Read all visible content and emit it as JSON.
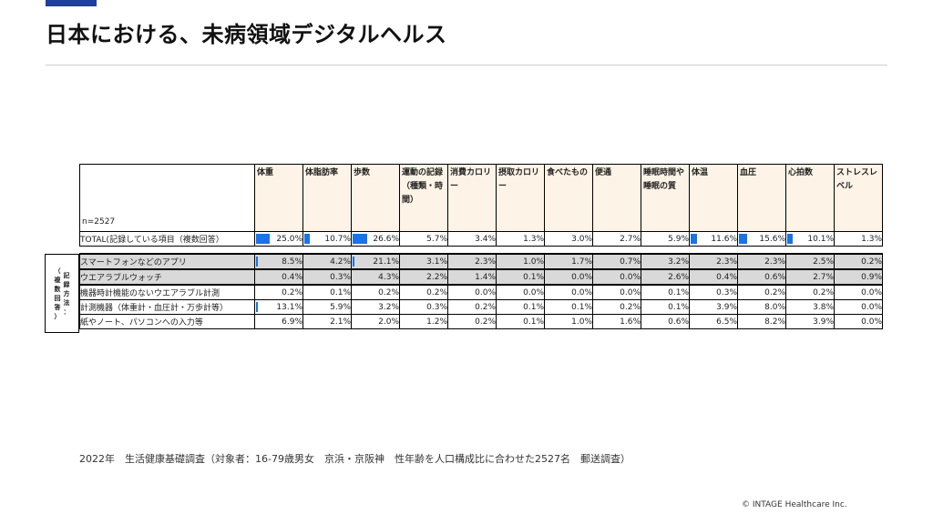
{
  "title": "日本における、未病領域デジタルヘルス",
  "colors": {
    "accent": "#1f3f9a",
    "bar": "#1a73e8",
    "header_bg": "#fdf3e6",
    "highlight_bg": "#d9d9d9"
  },
  "table": {
    "corner_label": "n=2527",
    "columns": [
      "体重",
      "体脂肪率",
      "歩数",
      "運動の記録（種類・時間）",
      "消費カロリー",
      "摂取カロリー",
      "食べたもの",
      "便通",
      "睡眠時間や睡眠の質",
      "体温",
      "血圧",
      "心拍数",
      "ストレスレベル"
    ],
    "total_row": {
      "label": "TOTAL(記録している項目（複数回答）",
      "values": [
        "25.0%",
        "10.7%",
        "26.6%",
        "5.7%",
        "3.4%",
        "1.3%",
        "3.0%",
        "2.7%",
        "5.9%",
        "11.6%",
        "15.6%",
        "10.1%",
        "1.3%"
      ],
      "bar_fractions": [
        0.94,
        0.4,
        1.0,
        0,
        0,
        0,
        0,
        0,
        0,
        0.44,
        0.59,
        0.38,
        0
      ]
    },
    "side_label": "（記録方法：複数回答）",
    "side_chars_left": [
      "（",
      "複",
      "数",
      "回",
      "答",
      "）"
    ],
    "side_chars_right": [
      "記",
      "録",
      "方",
      "法",
      "："
    ],
    "method_rows": [
      {
        "label": "スマートフォンなどのアプリ",
        "values": [
          "8.5%",
          "4.2%",
          "21.1%",
          "3.1%",
          "2.3%",
          "1.0%",
          "1.7%",
          "0.7%",
          "3.2%",
          "2.3%",
          "2.3%",
          "2.5%",
          "0.2%"
        ],
        "bar_fractions": [
          0.06,
          0,
          0.08,
          0,
          0,
          0,
          0,
          0,
          0,
          0,
          0,
          0,
          0
        ],
        "highlight": true
      },
      {
        "label": "ウエアラブルウォッチ",
        "values": [
          "0.4%",
          "0.3%",
          "4.3%",
          "2.2%",
          "1.4%",
          "0.1%",
          "0.0%",
          "0.0%",
          "2.6%",
          "0.4%",
          "0.6%",
          "2.7%",
          "0.9%"
        ],
        "bar_fractions": [
          0,
          0,
          0,
          0,
          0,
          0,
          0,
          0,
          0,
          0,
          0,
          0,
          0
        ],
        "highlight": true
      },
      {
        "label": "機器時計機能のないウエアラブル計測",
        "values": [
          "0.2%",
          "0.1%",
          "0.2%",
          "0.2%",
          "0.0%",
          "0.0%",
          "0.0%",
          "0.0%",
          "0.1%",
          "0.3%",
          "0.2%",
          "0.2%",
          "0.0%"
        ],
        "bar_fractions": [
          0,
          0,
          0,
          0,
          0,
          0,
          0,
          0,
          0,
          0,
          0,
          0,
          0
        ],
        "highlight": false
      },
      {
        "label": "計測機器（体重計・血圧計・万歩計等）",
        "values": [
          "13.1%",
          "5.9%",
          "3.2%",
          "0.3%",
          "0.2%",
          "0.1%",
          "0.1%",
          "0.2%",
          "0.1%",
          "3.9%",
          "8.0%",
          "3.8%",
          "0.0%"
        ],
        "bar_fractions": [
          0.04,
          0,
          0,
          0,
          0,
          0,
          0,
          0,
          0,
          0,
          0,
          0,
          0
        ],
        "highlight": false
      },
      {
        "label": "紙やノート、パソコンへの入力等",
        "values": [
          "6.9%",
          "2.1%",
          "2.0%",
          "1.2%",
          "0.2%",
          "0.1%",
          "1.0%",
          "1.6%",
          "0.6%",
          "6.5%",
          "8.2%",
          "3.9%",
          "0.0%"
        ],
        "bar_fractions": [
          0,
          0,
          0,
          0,
          0,
          0,
          0,
          0,
          0,
          0,
          0,
          0,
          0
        ],
        "highlight": false
      }
    ]
  },
  "footnote": "2022年　生活健康基礎調査（対象者：16-79歳男女　京浜・京阪神　性年齢を人口構成比に合わせた2527名　郵送調査）",
  "copyright": "© INTAGE Healthcare Inc."
}
